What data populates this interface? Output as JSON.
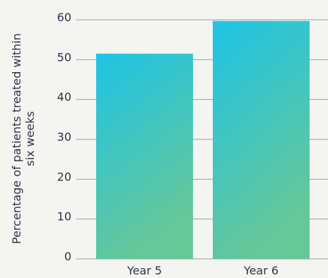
{
  "chart_data": {
    "type": "bar",
    "categories": [
      "Year 5",
      "Year 6"
    ],
    "values": [
      51.5,
      59.7
    ],
    "title": "",
    "xlabel": "",
    "ylabel": "Percentage of patients treated within six weeks",
    "ylabel_lines": [
      "Percentage of patients treated within",
      "six weeks"
    ],
    "ylim": [
      0,
      60
    ],
    "yticks": [
      0,
      10,
      20,
      30,
      40,
      50,
      60
    ],
    "grid": "horizontal",
    "legend": "none",
    "colors": {
      "bar_top": "#1ec4e6",
      "bar_bottom": "#66c798",
      "gridline": "#9a9ca6",
      "text": "#2e3148",
      "background": "#f4f5f1"
    }
  }
}
